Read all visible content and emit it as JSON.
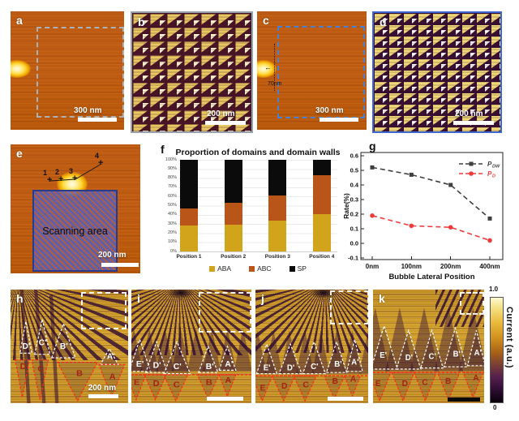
{
  "panels": {
    "a": {
      "label": "a",
      "scale": "300 nm"
    },
    "b": {
      "label": "b",
      "scale": "200 nm"
    },
    "c": {
      "label": "c",
      "scale": "300 nm",
      "offset": "70nm"
    },
    "d": {
      "label": "d",
      "scale": "200 nm"
    },
    "e": {
      "label": "e",
      "scale": "200 nm",
      "area": "Scanning area",
      "markers": [
        "1",
        "2",
        "3",
        "4"
      ]
    },
    "f": {
      "label": "f"
    },
    "g": {
      "label": "g"
    },
    "h": {
      "label": "h",
      "scale": "200 nm",
      "wall_labels": [
        "D'",
        "C'",
        "B'",
        "A'"
      ],
      "domain_labels": [
        "D",
        "C",
        "B",
        "A"
      ]
    },
    "i": {
      "label": "i",
      "wall_labels": [
        "E'",
        "D'",
        "C'",
        "B'",
        "A'"
      ],
      "domain_labels": [
        "E",
        "D",
        "C",
        "B",
        "A"
      ]
    },
    "j": {
      "label": "j",
      "wall_labels": [
        "E'",
        "D'",
        "C'",
        "B'",
        "A'"
      ],
      "domain_labels": [
        "E",
        "D",
        "C",
        "B",
        "A"
      ]
    },
    "k": {
      "label": "k",
      "wall_labels": [
        "E'",
        "D'",
        "C'",
        "B'",
        "A'"
      ],
      "domain_labels": [
        "E",
        "D",
        "C",
        "B",
        "A"
      ]
    }
  },
  "colorbar": {
    "max": "1.0",
    "min": "0",
    "label": "Current  (a.u.)"
  },
  "chart_data": [
    {
      "type": "bar",
      "stacked": true,
      "title": "Proportion of domains and domain walls",
      "categories": [
        "Position 1",
        "Position 2",
        "Position 3",
        "Position 4"
      ],
      "yticks": [
        "100%",
        "90%",
        "80%",
        "70%",
        "60%",
        "50%",
        "40%",
        "30%",
        "20%",
        "10%",
        "0%"
      ],
      "ylim": [
        0,
        100
      ],
      "grid": true,
      "legend_position": "bottom",
      "series": [
        {
          "name": "ABA",
          "color": "#D2A41C",
          "values": [
            28,
            29,
            34,
            41
          ]
        },
        {
          "name": "ABC",
          "color": "#BA551A",
          "values": [
            19,
            24,
            27,
            42
          ]
        },
        {
          "name": "SP",
          "color": "#0B0B0B",
          "values": [
            53,
            47,
            39,
            17
          ]
        }
      ]
    },
    {
      "type": "line",
      "title": "",
      "xlabel": "Bubble Lateral Position",
      "ylabel": "Rate(%)",
      "categories": [
        "0nm",
        "100nm",
        "200nm",
        "400nm"
      ],
      "yticks": [
        0.6,
        0.5,
        0.4,
        0.3,
        0.2,
        0.1,
        0.0,
        -0.1
      ],
      "ylim": [
        -0.1,
        0.6
      ],
      "legend_position": "top-right",
      "series": [
        {
          "name": "PDW",
          "label_main": "P",
          "label_sub": "DW",
          "color": "#3F3F3F",
          "marker": "square",
          "dashed": true,
          "values": [
            0.52,
            0.47,
            0.4,
            0.17
          ]
        },
        {
          "name": "PD",
          "label_main": "P",
          "label_sub": "D",
          "color": "#EE3B3B",
          "marker": "circle",
          "dashed": true,
          "values": [
            0.19,
            0.12,
            0.11,
            0.02
          ]
        }
      ]
    }
  ]
}
